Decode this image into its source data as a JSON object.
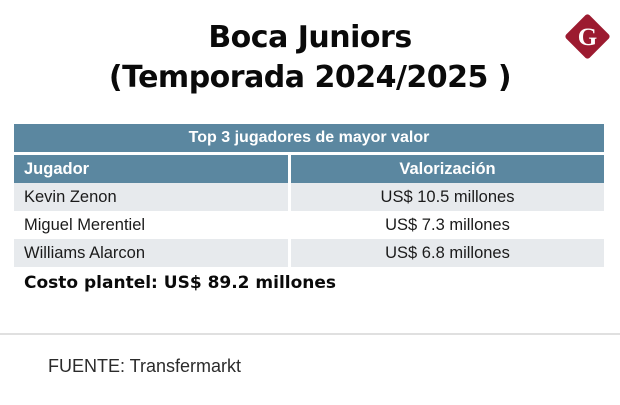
{
  "title": {
    "line1": "Boca Juniors",
    "line2": "(Temporada 2024/2025 )"
  },
  "logo": {
    "letter": "G",
    "color": "#9C1B30"
  },
  "table": {
    "header": "Top 3 jugadores de mayor valor",
    "columns": {
      "col1": "Jugador",
      "col2": "Valorización"
    },
    "rows": [
      {
        "jugador": "Kevin Zenon",
        "valorizacion": "US$ 10.5 millones"
      },
      {
        "jugador": "Miguel Merentiel",
        "valorizacion": "US$ 7.3 millones"
      },
      {
        "jugador": "Williams Alarcon",
        "valorizacion": "US$ 6.8 millones"
      }
    ],
    "header_bg": "#5B87A0",
    "row_alt_bg": "#E7EAED"
  },
  "summary": "Costo plantel: US$ 89.2 millones",
  "footer": {
    "source": "FUENTE: Transfermarkt"
  },
  "chart_data": {
    "type": "table",
    "title": "Boca Juniors (Temporada 2024/2025 )",
    "subtitle": "Top 3 jugadores de mayor valor",
    "columns": [
      "Jugador",
      "Valorización"
    ],
    "rows": [
      [
        "Kevin Zenon",
        "US$ 10.5 millones"
      ],
      [
        "Miguel Merentiel",
        "US$ 7.3 millones"
      ],
      [
        "Williams Alarcon",
        "US$ 6.8 millones"
      ]
    ],
    "values_usd_millones": [
      10.5,
      7.3,
      6.8
    ],
    "costo_plantel_usd_millones": 89.2,
    "source": "Transfermarkt"
  }
}
